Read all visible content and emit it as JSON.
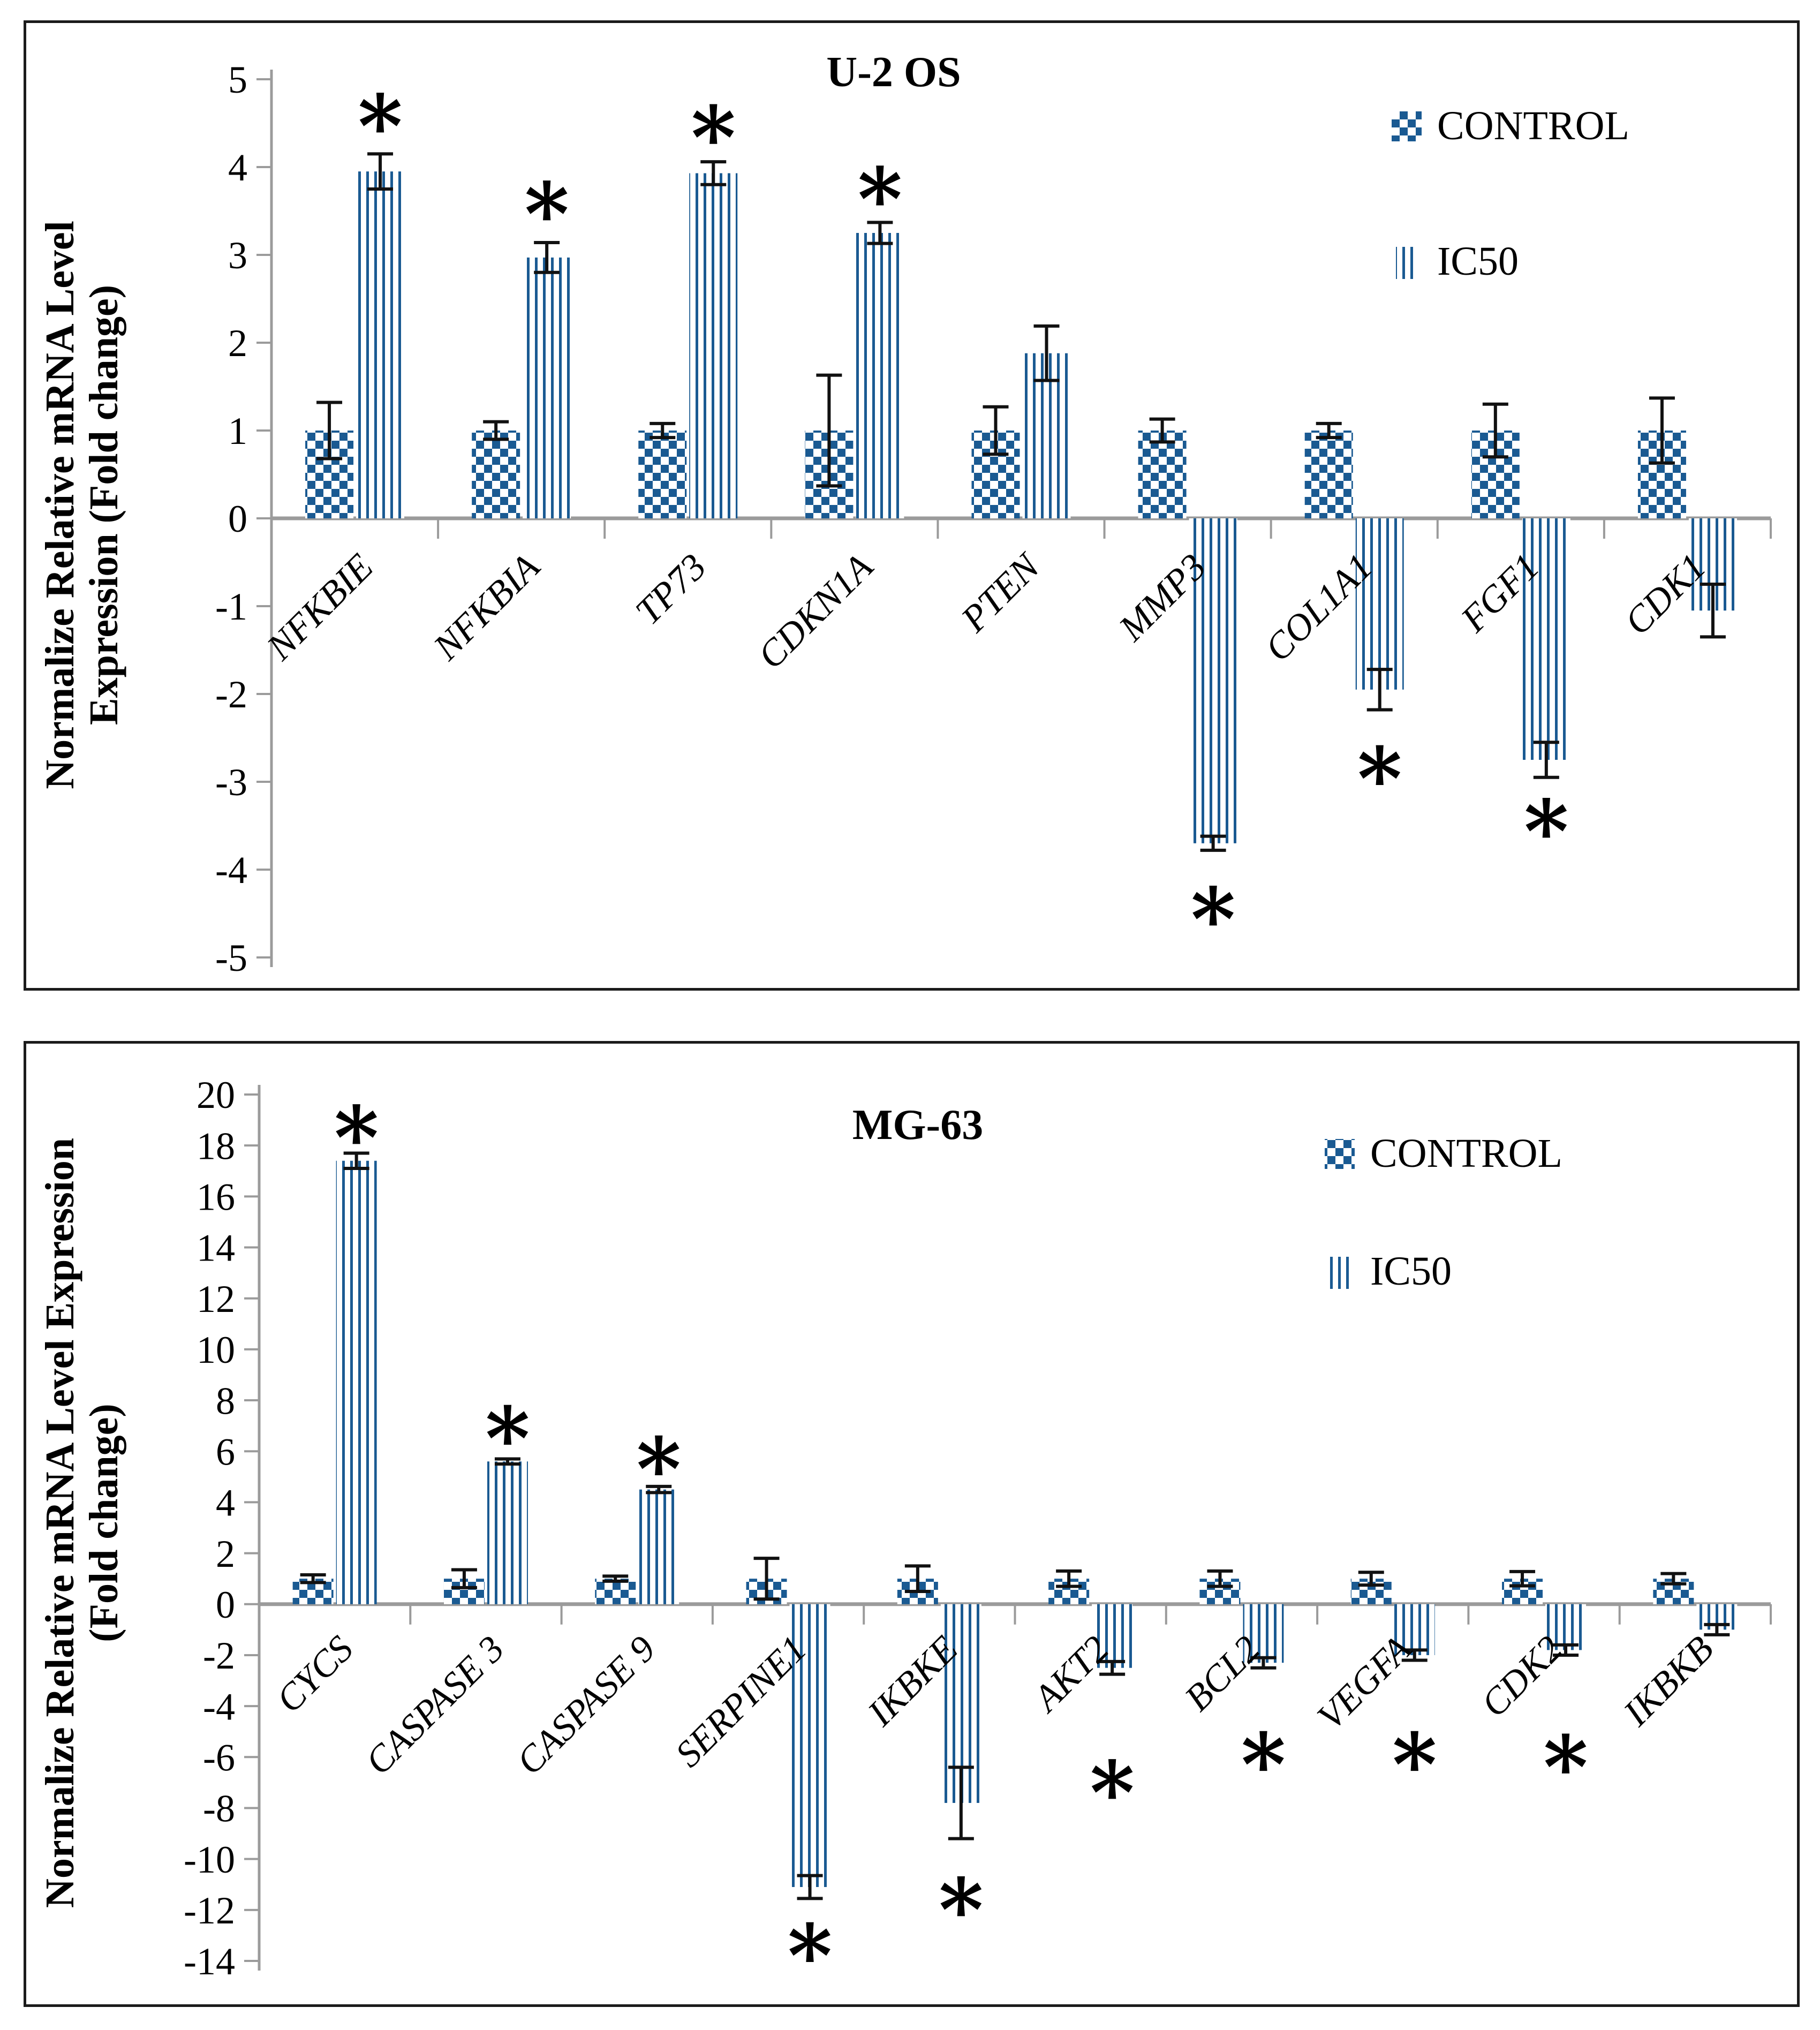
{
  "figure": {
    "background": "#ffffff",
    "bar_blue": "#1a5a92",
    "axis_gray": "#9b9b9b",
    "error_black": "#111111",
    "significance_marker": "*"
  },
  "chart_data": [
    {
      "type": "bar",
      "title": "U-2 OS",
      "ylabel_lines": [
        "Normalize Relative mRNA Level",
        "Expression (Fold change)"
      ],
      "ylim": [
        -5,
        5
      ],
      "y_ticks": [
        5,
        4,
        3,
        2,
        1,
        0,
        -1,
        -2,
        -3,
        -4,
        -5
      ],
      "grid": "off",
      "legend_position": "top-right",
      "categories": [
        "NFKBIE",
        "NFKBIA",
        "TP73",
        "CDKN1A",
        "PTEN",
        "MMP3",
        "COL1A1",
        "FGF1",
        "CDK1"
      ],
      "series": [
        {
          "name": "CONTROL",
          "pattern": "checker",
          "values": [
            1.0,
            1.0,
            1.0,
            1.0,
            1.0,
            1.0,
            1.0,
            1.0,
            1.0
          ],
          "errors": [
            0.32,
            0.1,
            0.08,
            0.63,
            0.27,
            0.13,
            0.08,
            0.3,
            0.37
          ],
          "significant": [
            false,
            false,
            false,
            false,
            false,
            false,
            false,
            false,
            false
          ],
          "asterisk_at": [
            null,
            null,
            null,
            null,
            null,
            null,
            null,
            null,
            null
          ]
        },
        {
          "name": "IC50",
          "pattern": "stripes",
          "values": [
            3.95,
            2.97,
            3.93,
            3.25,
            1.88,
            -3.7,
            -1.95,
            -2.75,
            -1.05
          ],
          "errors": [
            0.2,
            0.17,
            0.13,
            0.12,
            0.31,
            0.08,
            0.23,
            0.2,
            0.3
          ],
          "significant": [
            true,
            true,
            true,
            true,
            false,
            true,
            true,
            true,
            false
          ],
          "asterisk_at": [
            4.58,
            3.58,
            4.45,
            3.75,
            null,
            -4.45,
            -2.85,
            -3.45,
            null
          ]
        }
      ]
    },
    {
      "type": "bar",
      "title": "MG-63",
      "ylabel_lines": [
        "Normalize Relative mRNA Level Expression",
        "(Fold change)"
      ],
      "ylim": [
        -14,
        20
      ],
      "y_ticks": [
        20,
        18,
        16,
        14,
        12,
        10,
        8,
        6,
        4,
        2,
        0,
        -2,
        -4,
        -6,
        -8,
        -10,
        -12,
        -14
      ],
      "grid": "off",
      "legend_position": "top-right",
      "categories": [
        "CYCS",
        "CASPASE 3",
        "CASPASE 9",
        "SERPINE1",
        "IKBKE",
        "AKT2",
        "BCL2",
        "VEGFA",
        "CDK2",
        "IKBKB"
      ],
      "series": [
        {
          "name": "CONTROL",
          "pattern": "checker",
          "values": [
            1.0,
            1.0,
            1.0,
            1.0,
            1.0,
            1.0,
            1.0,
            1.0,
            1.0,
            1.0
          ],
          "errors": [
            0.15,
            0.35,
            0.1,
            0.8,
            0.5,
            0.3,
            0.3,
            0.25,
            0.28,
            0.2
          ],
          "significant": [
            false,
            false,
            false,
            false,
            false,
            false,
            false,
            false,
            false,
            false
          ],
          "asterisk_at": [
            null,
            null,
            null,
            null,
            null,
            null,
            null,
            null,
            null,
            null
          ]
        },
        {
          "name": "IC50",
          "pattern": "stripes",
          "values": [
            17.4,
            5.6,
            4.5,
            -11.1,
            -7.8,
            -2.5,
            -2.3,
            -2.0,
            -1.8,
            -1.0
          ],
          "errors": [
            0.3,
            0.1,
            0.12,
            0.45,
            1.4,
            0.25,
            0.2,
            0.2,
            0.2,
            0.2
          ],
          "significant": [
            true,
            true,
            true,
            true,
            true,
            true,
            true,
            true,
            true,
            false
          ],
          "asterisk_at": [
            18.7,
            6.9,
            5.7,
            -13.4,
            -11.6,
            -7.0,
            -5.9,
            -5.9,
            -6.0,
            null
          ]
        }
      ]
    }
  ]
}
